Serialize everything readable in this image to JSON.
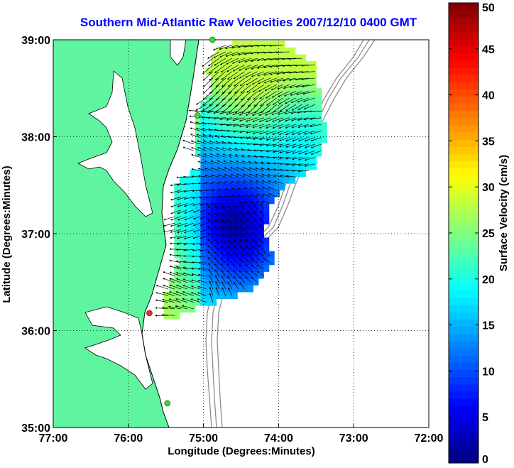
{
  "title": "Southern Mid-Atlantic Raw Velocities 2007/12/10 0400 GMT",
  "map": {
    "x_label": "Longitude (Degrees:Minutes)",
    "y_label": "Latitude (Degrees:Minutes)",
    "x_ticks": [
      {
        "value": -77,
        "label": "77:00"
      },
      {
        "value": -76,
        "label": "76:00"
      },
      {
        "value": -75,
        "label": "75:00"
      },
      {
        "value": -74,
        "label": "74:00"
      },
      {
        "value": -73,
        "label": "73:00"
      },
      {
        "value": -72,
        "label": "72:00"
      }
    ],
    "y_ticks": [
      {
        "value": 35,
        "label": "35:00"
      },
      {
        "value": 36,
        "label": "36:00"
      },
      {
        "value": 37,
        "label": "37:00"
      },
      {
        "value": 38,
        "label": "38:00"
      },
      {
        "value": 39,
        "label": "39:00"
      }
    ],
    "lon_range": [
      -77,
      -72
    ],
    "lat_range": [
      35,
      39
    ],
    "grid": true,
    "land_color": "#5ff5a0",
    "bathymetry_color": "#8c8c8c",
    "arrow_color": "#000000",
    "stations": [
      {
        "lon": -74.88,
        "lat": 39.0,
        "color": "#33dd33"
      },
      {
        "lon": -75.08,
        "lat": 38.22,
        "color": "#33dd33"
      },
      {
        "lon": -75.72,
        "lat": 36.18,
        "color": "#ff2222"
      },
      {
        "lon": -75.48,
        "lat": 35.25,
        "color": "#33dd33"
      }
    ]
  },
  "colorbar": {
    "label": "Surface Velocity (cm/s)",
    "min": 0,
    "max": 50,
    "ticks": [
      {
        "value": 0,
        "label": "0"
      },
      {
        "value": 5,
        "label": "5"
      },
      {
        "value": 10,
        "label": "10"
      },
      {
        "value": 15,
        "label": "15"
      },
      {
        "value": 20,
        "label": "20"
      },
      {
        "value": 25,
        "label": "25"
      },
      {
        "value": 30,
        "label": "30"
      },
      {
        "value": 35,
        "label": "35"
      },
      {
        "value": 40,
        "label": "40"
      },
      {
        "value": 45,
        "label": "45"
      },
      {
        "value": 50,
        "label": "50"
      }
    ],
    "colormap": "jet"
  }
}
